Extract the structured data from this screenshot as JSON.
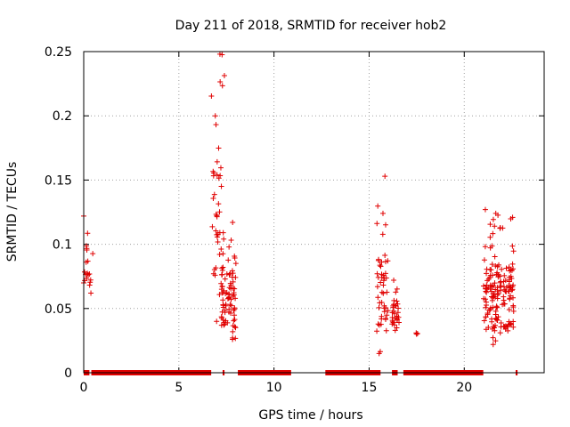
{
  "chart_data": {
    "type": "scatter",
    "title": "Day 211 of 2018, SRMTID for receiver hob2",
    "xlabel": "GPS time / hours",
    "ylabel": "SRMTID / TECUs",
    "xlim": [
      0,
      24.2
    ],
    "ylim": [
      0,
      0.25
    ],
    "xticks": [
      0,
      5,
      10,
      15,
      20
    ],
    "xtick_labels": [
      "0",
      "5",
      "10",
      "15",
      "20"
    ],
    "yticks": [
      0,
      0.05,
      0.1,
      0.15,
      0.2,
      0.25
    ],
    "ytick_labels": [
      "0",
      "0.05",
      "0.1",
      "0.15",
      "0.2",
      "0.25"
    ],
    "grid": true,
    "marker": "plus",
    "color": "#e00000",
    "series": [
      {
        "name": "SRMTID",
        "clusters": [
          {
            "x_range": [
              0.0,
              0.5
            ],
            "y_range": [
              0.062,
              0.122
            ],
            "count": 20
          },
          {
            "x_range": [
              6.7,
              7.4
            ],
            "y_range": [
              0.04,
              0.248
            ],
            "count": 45
          },
          {
            "x_range": [
              7.2,
              8.0
            ],
            "y_range": [
              0.026,
              0.117
            ],
            "count": 80
          },
          {
            "x_range": [
              15.4,
              16.0
            ],
            "y_range": [
              0.015,
              0.153
            ],
            "count": 50
          },
          {
            "x_range": [
              16.2,
              16.6
            ],
            "y_range": [
              0.033,
              0.072
            ],
            "count": 30
          },
          {
            "x_range": [
              17.4,
              17.6
            ],
            "y_range": [
              0.03,
              0.031
            ],
            "count": 3
          },
          {
            "x_range": [
              21.0,
              22.6
            ],
            "y_range": [
              0.022,
              0.127
            ],
            "count": 170
          }
        ],
        "zero_segments": [
          [
            0.0,
            0.3
          ],
          [
            0.4,
            6.7
          ],
          [
            7.3,
            7.4
          ],
          [
            8.1,
            10.9
          ],
          [
            12.7,
            15.6
          ],
          [
            16.2,
            16.5
          ],
          [
            16.8,
            21.0
          ],
          [
            22.7,
            22.8
          ]
        ]
      }
    ]
  }
}
